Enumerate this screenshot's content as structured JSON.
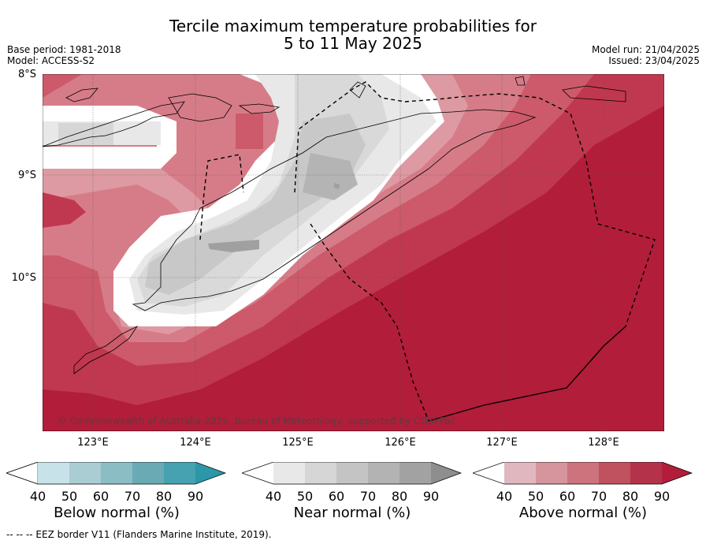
{
  "header": {
    "title_line1": "Tercile maximum temperature probabilities for",
    "title_line2": "5 to 11 May 2025",
    "base_period": "Base period: 1981-2018",
    "model": "Model: ACCESS-S2",
    "model_run": "Model run: 21/04/2025",
    "issued": "Issued: 23/04/2025"
  },
  "map": {
    "lat_labels": [
      "8°S",
      "9°S",
      "10°S"
    ],
    "lon_labels": [
      "123°E",
      "124°E",
      "125°E",
      "126°E",
      "127°E",
      "128°E"
    ],
    "copyright": "© Commonwealth of Australia 2025, Bureau of Meteorology, supported by COSPPac",
    "colors": {
      "above_90": "#b21d3a",
      "above_80": "#c0384f",
      "above_70": "#cc5a6a",
      "above_60": "#d67c88",
      "above_50": "#dd9aa2",
      "near_40": "#e8e8e8",
      "near_50": "#d9d9d9",
      "near_60": "#c8c8c8",
      "near_70": "#b4b4b4",
      "near_80": "#a0a0a0"
    }
  },
  "colorbars": [
    {
      "label": "Below normal (%)",
      "ticks": [
        "40",
        "50",
        "60",
        "70",
        "80",
        "90"
      ],
      "colors": [
        "#c7e2e8",
        "#a9cdd2",
        "#8bbdc5",
        "#6aaab5",
        "#46a1b0",
        "#2c97a8"
      ]
    },
    {
      "label": "Near normal (%)",
      "ticks": [
        "40",
        "50",
        "60",
        "70",
        "80",
        "90"
      ],
      "colors": [
        "#e8e8e8",
        "#d6d6d6",
        "#c4c4c4",
        "#b3b3b3",
        "#a2a2a2",
        "#8e8e8e"
      ]
    },
    {
      "label": "Above normal (%)",
      "ticks": [
        "40",
        "50",
        "60",
        "70",
        "80",
        "90"
      ],
      "colors": [
        "#e0b7be",
        "#d6949d",
        "#cc737d",
        "#c0515e",
        "#b5334a",
        "#b21d3a"
      ]
    }
  ],
  "footer": {
    "eez_note": "--  --  -- EEZ border V11 (Flanders Marine Institute, 2019)."
  }
}
